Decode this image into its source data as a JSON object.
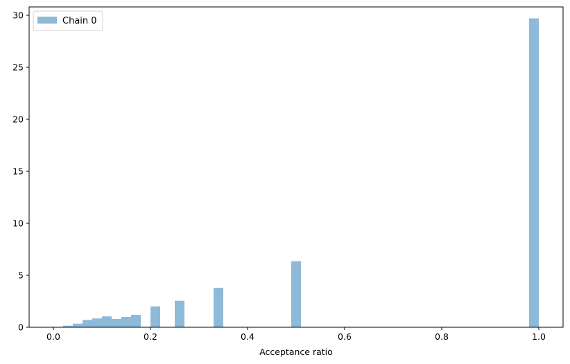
{
  "chart_data": {
    "type": "bar",
    "xlabel": "Acceptance ratio",
    "ylabel": "",
    "xlim": [
      -0.05,
      1.05
    ],
    "ylim": [
      0,
      30.8
    ],
    "xticks": [
      0.0,
      0.2,
      0.4,
      0.6,
      0.8,
      1.0
    ],
    "xtick_labels": [
      "0.0",
      "0.2",
      "0.4",
      "0.6",
      "0.8",
      "1.0"
    ],
    "yticks": [
      0,
      5,
      10,
      15,
      20,
      25,
      30
    ],
    "ytick_labels": [
      "0",
      "5",
      "10",
      "15",
      "20",
      "25",
      "30"
    ],
    "bin_width": 0.02,
    "bar_color": "#8fb9d9",
    "series": [
      {
        "name": "Chain 0",
        "bins": [
          {
            "x0": 0.02,
            "x1": 0.04,
            "value": 0.15
          },
          {
            "x0": 0.04,
            "x1": 0.06,
            "value": 0.35
          },
          {
            "x0": 0.06,
            "x1": 0.08,
            "value": 0.7
          },
          {
            "x0": 0.08,
            "x1": 0.1,
            "value": 0.85
          },
          {
            "x0": 0.1,
            "x1": 0.12,
            "value": 1.05
          },
          {
            "x0": 0.12,
            "x1": 0.14,
            "value": 0.8
          },
          {
            "x0": 0.14,
            "x1": 0.16,
            "value": 1.0
          },
          {
            "x0": 0.16,
            "x1": 0.18,
            "value": 1.2
          },
          {
            "x0": 0.2,
            "x1": 0.22,
            "value": 2.0
          },
          {
            "x0": 0.25,
            "x1": 0.27,
            "value": 2.55
          },
          {
            "x0": 0.33,
            "x1": 0.35,
            "value": 3.8
          },
          {
            "x0": 0.49,
            "x1": 0.51,
            "value": 6.35
          },
          {
            "x0": 0.98,
            "x1": 1.0,
            "value": 29.7
          }
        ]
      }
    ],
    "legend": {
      "position": "top-left",
      "entries": [
        "Chain 0"
      ]
    },
    "grid": false
  }
}
